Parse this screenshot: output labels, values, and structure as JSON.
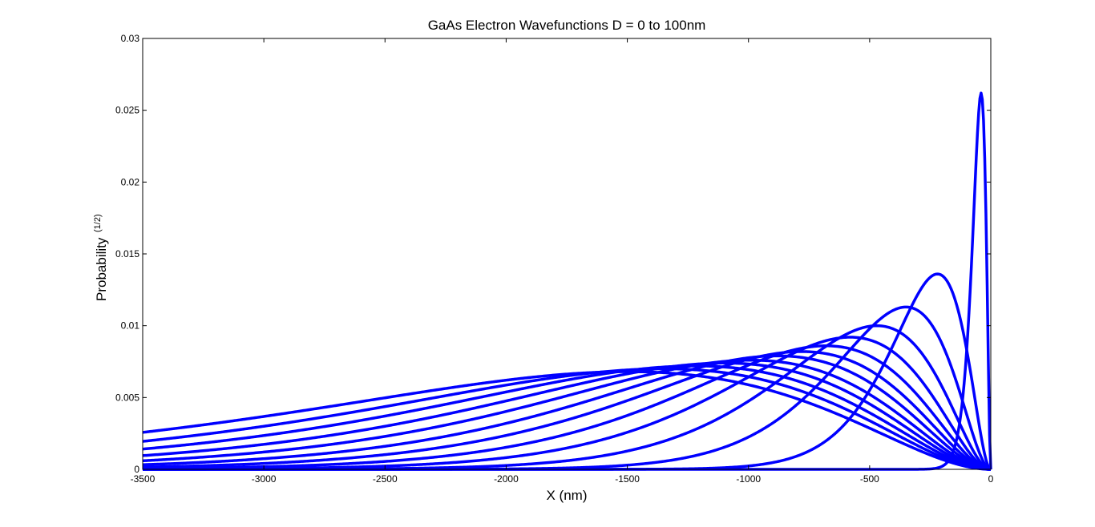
{
  "chart_data": {
    "type": "line",
    "title": "GaAs Electron Wavefunctions D = 0 to 100nm",
    "xlabel": "X (nm)",
    "ylabel": "Probability",
    "ylabel_superscript": "(1/2)",
    "xlim": [
      -3500,
      0
    ],
    "ylim": [
      0,
      0.03
    ],
    "xticks": [
      -3500,
      -3000,
      -2500,
      -2000,
      -1500,
      -1000,
      -500,
      0
    ],
    "xtick_labels": [
      "-3500",
      "-3000",
      "-2500",
      "-2000",
      "-1500",
      "-1000",
      "-500",
      "0"
    ],
    "yticks": [
      0,
      0.005,
      0.01,
      0.015,
      0.02,
      0.025,
      0.03
    ],
    "ytick_labels": [
      "0",
      "0.005",
      "0.01",
      "0.015",
      "0.02",
      "0.025",
      "0.03"
    ],
    "grid": false,
    "line_color": "#0000ff",
    "series": [
      {
        "peak_x": -40,
        "peak_y": 0.0262
      },
      {
        "peak_x": -220,
        "peak_y": 0.0136
      },
      {
        "peak_x": -350,
        "peak_y": 0.0113
      },
      {
        "peak_x": -470,
        "peak_y": 0.01
      },
      {
        "peak_x": -580,
        "peak_y": 0.0092
      },
      {
        "peak_x": -680,
        "peak_y": 0.0086
      },
      {
        "peak_x": -780,
        "peak_y": 0.0082
      },
      {
        "peak_x": -880,
        "peak_y": 0.0079
      },
      {
        "peak_x": -990,
        "peak_y": 0.0076
      },
      {
        "peak_x": -1100,
        "peak_y": 0.0074
      },
      {
        "peak_x": -1220,
        "peak_y": 0.0072
      },
      {
        "peak_x": -1350,
        "peak_y": 0.007
      },
      {
        "peak_x": -1500,
        "peak_y": 0.0068
      }
    ]
  }
}
